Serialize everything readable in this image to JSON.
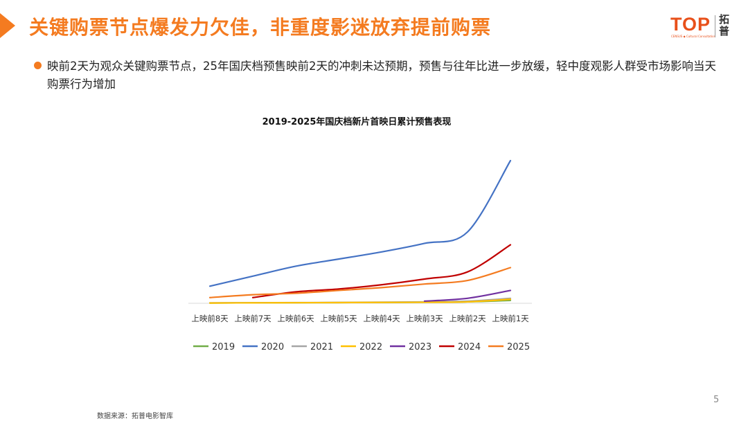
{
  "header": {
    "title": "关键购票节点爆发力欠佳，非重度影迷放弃提前购票",
    "logo_mark": "TOP",
    "logo_sub": "CENSUS ◆ Cultural Consultation",
    "logo_cn": "拓普"
  },
  "bullet": {
    "text": "映前2天为观众关键购票节点，25年国庆档预售映前2天的冲刺未达预期，预售与往年比进一步放缓，轻中度观影人群受市场影响当天购票行为增加"
  },
  "chart_data": {
    "type": "line",
    "title": "2019-2025年国庆档新片首映日累计预售表现",
    "categories": [
      "上映前8天",
      "上映前7天",
      "上映前6天",
      "上映前5天",
      "上映前4天",
      "上映前3天",
      "上映前2天",
      "上映前1天"
    ],
    "ylim": [
      0,
      100
    ],
    "series": [
      {
        "name": "2019",
        "color": "#70AD47",
        "values": [
          0.2,
          0.3,
          0.4,
          0.5,
          0.6,
          0.8,
          1.0,
          2.0
        ]
      },
      {
        "name": "2020",
        "color": "#4472C4",
        "values": [
          12,
          19,
          26,
          31,
          36,
          42,
          50,
          100
        ]
      },
      {
        "name": "2021",
        "color": "#A5A5A5",
        "values": [
          0.3,
          0.4,
          0.5,
          0.6,
          0.8,
          1.0,
          1.5,
          3.5
        ]
      },
      {
        "name": "2022",
        "color": "#FFC000",
        "values": [
          0.2,
          0.3,
          0.4,
          0.5,
          0.6,
          0.7,
          1.0,
          2.8
        ]
      },
      {
        "name": "2023",
        "color": "#7030A0",
        "values": [
          null,
          null,
          null,
          null,
          null,
          1.5,
          3.5,
          9
        ]
      },
      {
        "name": "2024",
        "color": "#C00000",
        "values": [
          null,
          4,
          8,
          10,
          13,
          17,
          22,
          41
        ]
      },
      {
        "name": "2025",
        "color": "#F47B20",
        "values": [
          4,
          6,
          7,
          9,
          11,
          13.5,
          16,
          25
        ]
      }
    ]
  },
  "page_number": "5",
  "source": "数据来源：拓普电影智库"
}
